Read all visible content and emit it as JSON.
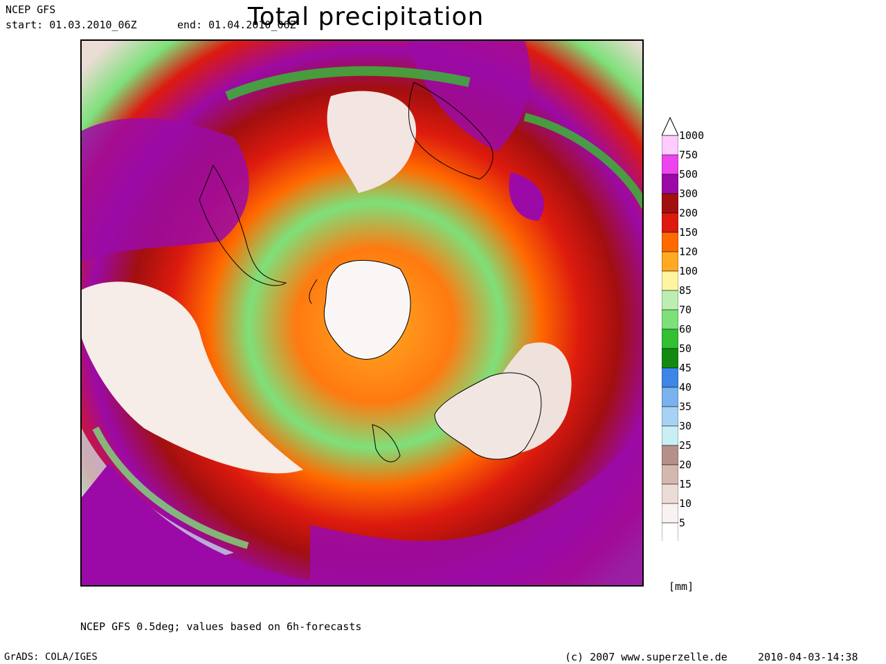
{
  "header": {
    "model": "NCEP GFS",
    "start": "start: 01.03.2010_06Z",
    "end": "end: 01.04.2010_06Z",
    "title": "Total precipitation"
  },
  "legend": {
    "unit": "[mm]",
    "levels": [
      {
        "label": "1000",
        "color": "#ffccff"
      },
      {
        "label": "750",
        "color": "#ee44ee"
      },
      {
        "label": "500",
        "color": "#9b0aa6"
      },
      {
        "label": "300",
        "color": "#a20f0f"
      },
      {
        "label": "200",
        "color": "#dd1a0e"
      },
      {
        "label": "150",
        "color": "#ff6a00"
      },
      {
        "label": "120",
        "color": "#ffaa22"
      },
      {
        "label": "100",
        "color": "#fff4a0"
      },
      {
        "label": "85",
        "color": "#bdeeb1"
      },
      {
        "label": "70",
        "color": "#7ee07a"
      },
      {
        "label": "60",
        "color": "#33c033"
      },
      {
        "label": "50",
        "color": "#128a12"
      },
      {
        "label": "45",
        "color": "#3d86e8"
      },
      {
        "label": "40",
        "color": "#7ab2ee"
      },
      {
        "label": "35",
        "color": "#a8d2f4"
      },
      {
        "label": "30",
        "color": "#c8f0f4"
      },
      {
        "label": "25",
        "color": "#b49088"
      },
      {
        "label": "20",
        "color": "#d4b8ae"
      },
      {
        "label": "15",
        "color": "#ecdcd6"
      },
      {
        "label": "10",
        "color": "#f8f2f0"
      },
      {
        "label": "5",
        "color": "#ffffff"
      }
    ]
  },
  "footer": {
    "note": "NCEP GFS 0.5deg; values based on 6h-forecasts",
    "grads": "GrADS: COLA/IGES",
    "copyright": "(c) 2007 www.superzelle.de",
    "timestamp": "2010-04-03-14:38"
  },
  "map": {
    "projection": "polar-stereographic-south",
    "features": [
      "antarctica",
      "south-america",
      "africa",
      "australia",
      "new-zealand"
    ]
  }
}
